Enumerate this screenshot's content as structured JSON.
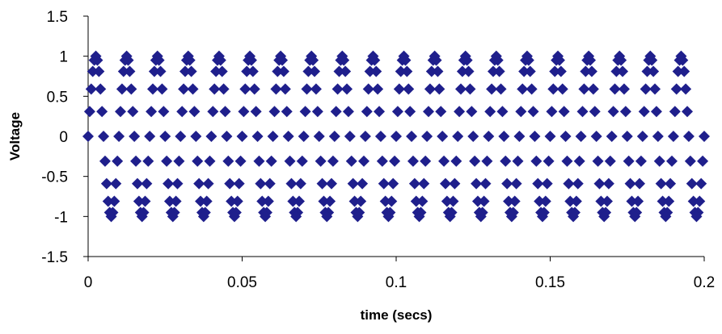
{
  "chart_data": {
    "type": "scatter",
    "title": "",
    "xlabel": "time (secs)",
    "ylabel": "Voltage",
    "xlim": [
      0,
      0.2
    ],
    "ylim": [
      -1.5,
      1.5
    ],
    "xticks": [
      0,
      0.05,
      0.1,
      0.15,
      0.2
    ],
    "xtick_labels": [
      "0",
      "0.05",
      "0.1",
      "0.15",
      "0.2"
    ],
    "yticks": [
      1.5,
      1,
      0.5,
      0,
      -0.5,
      -1,
      -1.5
    ],
    "ytick_labels": [
      "1.5",
      "1",
      "0.5",
      "0",
      "-0.5",
      "-1",
      "-1.5"
    ],
    "grid": false,
    "legend": "none",
    "marker": "diamond",
    "marker_color": "#1F1F8C",
    "series": [
      {
        "x": [
          0,
          0.001,
          0.002,
          0.003,
          0.004,
          0.005,
          0.006,
          0.007,
          0.008,
          0.009,
          0.01,
          0.011,
          0.012,
          0.013,
          0.014,
          0.015,
          0.016,
          0.017,
          0.018,
          0.019,
          0.02,
          0.021,
          0.022,
          0.023,
          0.024,
          0.025,
          0.026,
          0.027,
          0.028,
          0.029,
          0.03,
          0.031,
          0.032,
          0.033,
          0.034,
          0.035,
          0.036,
          0.037,
          0.038,
          0.039,
          0.04,
          0.041,
          0.042,
          0.043,
          0.044,
          0.045,
          0.046,
          0.047,
          0.048,
          0.049,
          0.05,
          0.051,
          0.052,
          0.053,
          0.054,
          0.055,
          0.056,
          0.057,
          0.058,
          0.059,
          0.06,
          0.061,
          0.062,
          0.063,
          0.064,
          0.065,
          0.066,
          0.067,
          0.068,
          0.069,
          0.07,
          0.071,
          0.072,
          0.073,
          0.074,
          0.075,
          0.076,
          0.077,
          0.078,
          0.079,
          0.08,
          0.081,
          0.082,
          0.083,
          0.084,
          0.085,
          0.086,
          0.087,
          0.088,
          0.089,
          0.09,
          0.091,
          0.092,
          0.093,
          0.094,
          0.095,
          0.096,
          0.097,
          0.098,
          0.099,
          0.1,
          0.101,
          0.102,
          0.103,
          0.104,
          0.105,
          0.106,
          0.107,
          0.108,
          0.109,
          0.11,
          0.111,
          0.112,
          0.113,
          0.114,
          0.115,
          0.116,
          0.117,
          0.118,
          0.119,
          0.12,
          0.121,
          0.122,
          0.123,
          0.124,
          0.125,
          0.126,
          0.127,
          0.128,
          0.129,
          0.13,
          0.131,
          0.132,
          0.133,
          0.134,
          0.135,
          0.136,
          0.137,
          0.138,
          0.139,
          0.14,
          0.141,
          0.142,
          0.143,
          0.144,
          0.145,
          0.146,
          0.147,
          0.148,
          0.149,
          0.15,
          0.151,
          0.152,
          0.153,
          0.154,
          0.155,
          0.156,
          0.157,
          0.158,
          0.159,
          0.16,
          0.161,
          0.162,
          0.163,
          0.164,
          0.165,
          0.166,
          0.167,
          0.168,
          0.169,
          0.17,
          0.171,
          0.172,
          0.173,
          0.174,
          0.175,
          0.176,
          0.177,
          0.178,
          0.179,
          0.18,
          0.181,
          0.182,
          0.183,
          0.184,
          0.185,
          0.186,
          0.187,
          0.188,
          0.189,
          0.19,
          0.191,
          0.192,
          0.193,
          0.194,
          0.195,
          0.196,
          0.197,
          0.198,
          0.199,
          0.2
        ],
        "y": [
          0,
          0.59,
          0.95,
          0.95,
          0.59,
          0,
          -0.59,
          -0.95,
          -0.95,
          -0.59,
          0,
          0.59,
          0.95,
          0.95,
          0.59,
          0,
          -0.59,
          -0.95,
          -0.95,
          -0.59,
          0,
          0.59,
          0.95,
          0.95,
          0.59,
          0,
          -0.59,
          -0.95,
          -0.95,
          -0.59,
          0,
          0.59,
          0.95,
          0.95,
          0.59,
          0,
          -0.59,
          -0.95,
          -0.95,
          -0.59,
          0,
          0.59,
          0.95,
          0.95,
          0.59,
          0,
          -0.59,
          -0.95,
          -0.95,
          -0.59,
          0,
          0.59,
          0.95,
          0.95,
          0.59,
          0,
          -0.59,
          -0.95,
          -0.95,
          -0.59,
          0,
          0.59,
          0.95,
          0.95,
          0.59,
          0,
          -0.59,
          -0.95,
          -0.95,
          -0.59,
          0,
          0.59,
          0.95,
          0.95,
          0.59,
          0,
          -0.59,
          -0.95,
          -0.95,
          -0.59,
          0,
          0.59,
          0.95,
          0.95,
          0.59,
          0,
          -0.59,
          -0.95,
          -0.95,
          -0.59,
          0,
          0.59,
          0.95,
          0.95,
          0.59,
          0,
          -0.59,
          -0.95,
          -0.95,
          -0.59,
          0,
          0.59,
          0.95,
          0.95,
          0.59,
          0,
          -0.59,
          -0.95,
          -0.95,
          -0.59,
          0,
          0.59,
          0.95,
          0.95,
          0.59,
          0,
          -0.59,
          -0.95,
          -0.95,
          -0.59,
          0,
          0.59,
          0.95,
          0.95,
          0.59,
          0,
          -0.59,
          -0.95,
          -0.95,
          -0.59,
          0,
          0.59,
          0.95,
          0.95,
          0.59,
          0,
          -0.59,
          -0.95,
          -0.95,
          -0.59,
          0,
          0.59,
          0.95,
          0.95,
          0.59,
          0,
          -0.59,
          -0.95,
          -0.95,
          -0.59,
          0,
          0.59,
          0.95,
          0.95,
          0.59,
          0,
          -0.59,
          -0.95,
          -0.95,
          -0.59,
          0,
          0.59,
          0.95,
          0.95,
          0.59,
          0,
          -0.59,
          -0.95,
          -0.95,
          -0.59,
          0,
          0.59,
          0.95,
          0.95,
          0.59,
          0,
          -0.59,
          -0.95,
          -0.95,
          -0.59,
          0,
          0.59,
          0.95,
          0.95,
          0.59,
          0,
          -0.59,
          -0.95,
          -0.95,
          -0.59,
          0,
          0.59,
          0.95,
          0.95,
          0.59,
          0,
          -0.59,
          -0.95,
          -0.95,
          -0.59,
          0
        ]
      },
      {
        "x": [
          0.0005,
          0.0015,
          0.0025,
          0.0035,
          0.0045,
          0.0055,
          0.0065,
          0.0075,
          0.0085,
          0.0095,
          0.0105,
          0.0115,
          0.0125,
          0.0135,
          0.0145,
          0.0155,
          0.0165,
          0.0175,
          0.0185,
          0.0195,
          0.0205,
          0.0215,
          0.0225,
          0.0235,
          0.0245,
          0.0255,
          0.0265,
          0.0275,
          0.0285,
          0.0295,
          0.0305,
          0.0315,
          0.0325,
          0.0335,
          0.0345,
          0.0355,
          0.0365,
          0.0375,
          0.0385,
          0.0395,
          0.0405,
          0.0415,
          0.0425,
          0.0435,
          0.0445,
          0.0455,
          0.0465,
          0.0475,
          0.0485,
          0.0495,
          0.0505,
          0.0515,
          0.0525,
          0.0535,
          0.0545,
          0.0555,
          0.0565,
          0.0575,
          0.0585,
          0.0595,
          0.0605,
          0.0615,
          0.0625,
          0.0635,
          0.0645,
          0.0655,
          0.0665,
          0.0675,
          0.0685,
          0.0695,
          0.0705,
          0.0715,
          0.0725,
          0.0735,
          0.0745,
          0.0755,
          0.0765,
          0.0775,
          0.0785,
          0.0795,
          0.0805,
          0.0815,
          0.0825,
          0.0835,
          0.0845,
          0.0855,
          0.0865,
          0.0875,
          0.0885,
          0.0895,
          0.0905,
          0.0915,
          0.0925,
          0.0935,
          0.0945,
          0.0955,
          0.0965,
          0.0975,
          0.0985,
          0.0995,
          0.1005,
          0.1015,
          0.1025,
          0.1035,
          0.1045,
          0.1055,
          0.1065,
          0.1075,
          0.1085,
          0.1095,
          0.1105,
          0.1115,
          0.1125,
          0.1135,
          0.1145,
          0.1155,
          0.1165,
          0.1175,
          0.1185,
          0.1195,
          0.1205,
          0.1215,
          0.1225,
          0.1235,
          0.1245,
          0.1255,
          0.1265,
          0.1275,
          0.1285,
          0.1295,
          0.1305,
          0.1315,
          0.1325,
          0.1335,
          0.1345,
          0.1355,
          0.1365,
          0.1375,
          0.1385,
          0.1395,
          0.1405,
          0.1415,
          0.1425,
          0.1435,
          0.1445,
          0.1455,
          0.1465,
          0.1475,
          0.1485,
          0.1495,
          0.1505,
          0.1515,
          0.1525,
          0.1535,
          0.1545,
          0.1555,
          0.1565,
          0.1575,
          0.1585,
          0.1595,
          0.1605,
          0.1615,
          0.1625,
          0.1635,
          0.1645,
          0.1655,
          0.1665,
          0.1675,
          0.1685,
          0.1695,
          0.1705,
          0.1715,
          0.1725,
          0.1735,
          0.1745,
          0.1755,
          0.1765,
          0.1775,
          0.1785,
          0.1795,
          0.1805,
          0.1815,
          0.1825,
          0.1835,
          0.1845,
          0.1855,
          0.1865,
          0.1875,
          0.1885,
          0.1895,
          0.1905,
          0.1915,
          0.1925,
          0.1935,
          0.1945,
          0.1955,
          0.1965,
          0.1975,
          0.1985,
          0.1995
        ],
        "y": [
          0.31,
          0.81,
          1,
          0.81,
          0.31,
          -0.31,
          -0.81,
          -1,
          -0.81,
          -0.31,
          0.31,
          0.81,
          1,
          0.81,
          0.31,
          -0.31,
          -0.81,
          -1,
          -0.81,
          -0.31,
          0.31,
          0.81,
          1,
          0.81,
          0.31,
          -0.31,
          -0.81,
          -1,
          -0.81,
          -0.31,
          0.31,
          0.81,
          1,
          0.81,
          0.31,
          -0.31,
          -0.81,
          -1,
          -0.81,
          -0.31,
          0.31,
          0.81,
          1,
          0.81,
          0.31,
          -0.31,
          -0.81,
          -1,
          -0.81,
          -0.31,
          0.31,
          0.81,
          1,
          0.81,
          0.31,
          -0.31,
          -0.81,
          -1,
          -0.81,
          -0.31,
          0.31,
          0.81,
          1,
          0.81,
          0.31,
          -0.31,
          -0.81,
          -1,
          -0.81,
          -0.31,
          0.31,
          0.81,
          1,
          0.81,
          0.31,
          -0.31,
          -0.81,
          -1,
          -0.81,
          -0.31,
          0.31,
          0.81,
          1,
          0.81,
          0.31,
          -0.31,
          -0.81,
          -1,
          -0.81,
          -0.31,
          0.31,
          0.81,
          1,
          0.81,
          0.31,
          -0.31,
          -0.81,
          -1,
          -0.81,
          -0.31,
          0.31,
          0.81,
          1,
          0.81,
          0.31,
          -0.31,
          -0.81,
          -1,
          -0.81,
          -0.31,
          0.31,
          0.81,
          1,
          0.81,
          0.31,
          -0.31,
          -0.81,
          -1,
          -0.81,
          -0.31,
          0.31,
          0.81,
          1,
          0.81,
          0.31,
          -0.31,
          -0.81,
          -1,
          -0.81,
          -0.31,
          0.31,
          0.81,
          1,
          0.81,
          0.31,
          -0.31,
          -0.81,
          -1,
          -0.81,
          -0.31,
          0.31,
          0.81,
          1,
          0.81,
          0.31,
          -0.31,
          -0.81,
          -1,
          -0.81,
          -0.31,
          0.31,
          0.81,
          1,
          0.81,
          0.31,
          -0.31,
          -0.81,
          -1,
          -0.81,
          -0.31,
          0.31,
          0.81,
          1,
          0.81,
          0.31,
          -0.31,
          -0.81,
          -1,
          -0.81,
          -0.31,
          0.31,
          0.81,
          1,
          0.81,
          0.31,
          -0.31,
          -0.81,
          -1,
          -0.81,
          -0.31,
          0.31,
          0.81,
          1,
          0.81,
          0.31,
          -0.31,
          -0.81,
          -1,
          -0.81,
          -0.31,
          0.31,
          0.81,
          1,
          0.81,
          0.31,
          -0.31,
          -0.81,
          -1,
          -0.81,
          -0.31
        ]
      }
    ]
  }
}
